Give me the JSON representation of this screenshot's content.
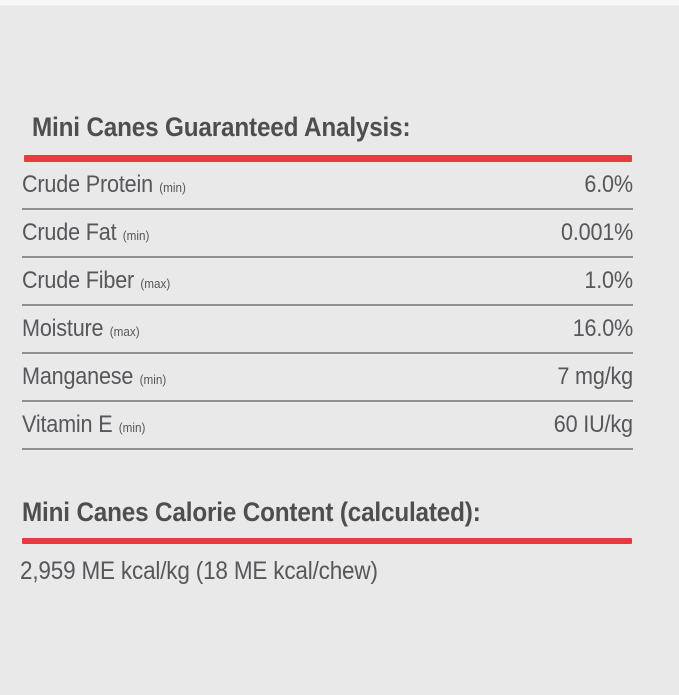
{
  "page": {
    "background_color": "#e9e9e9",
    "accent_red": "#e73b40",
    "text_color": "#56575a",
    "heading_color": "#4d4e50",
    "divider_color": "#8f8f8f"
  },
  "guaranteed_analysis": {
    "title": "Mini Canes Guaranteed Analysis:",
    "rows": [
      {
        "label": "Crude Protein",
        "qualifier": "(min)",
        "value": "6.0%"
      },
      {
        "label": "Crude Fat",
        "qualifier": "(min)",
        "value": "0.001%"
      },
      {
        "label": "Crude Fiber",
        "qualifier": "(max)",
        "value": "1.0%"
      },
      {
        "label": "Moisture",
        "qualifier": "(max)",
        "value": "16.0%"
      },
      {
        "label": "Manganese",
        "qualifier": "(min)",
        "value": "7 mg/kg"
      },
      {
        "label": "Vitamin E",
        "qualifier": "(min)",
        "value": "60 IU/kg"
      }
    ]
  },
  "calorie_content": {
    "title": "Mini Canes Calorie Content (calculated):",
    "value": "2,959 ME kcal/kg (18 ME kcal/chew)"
  }
}
